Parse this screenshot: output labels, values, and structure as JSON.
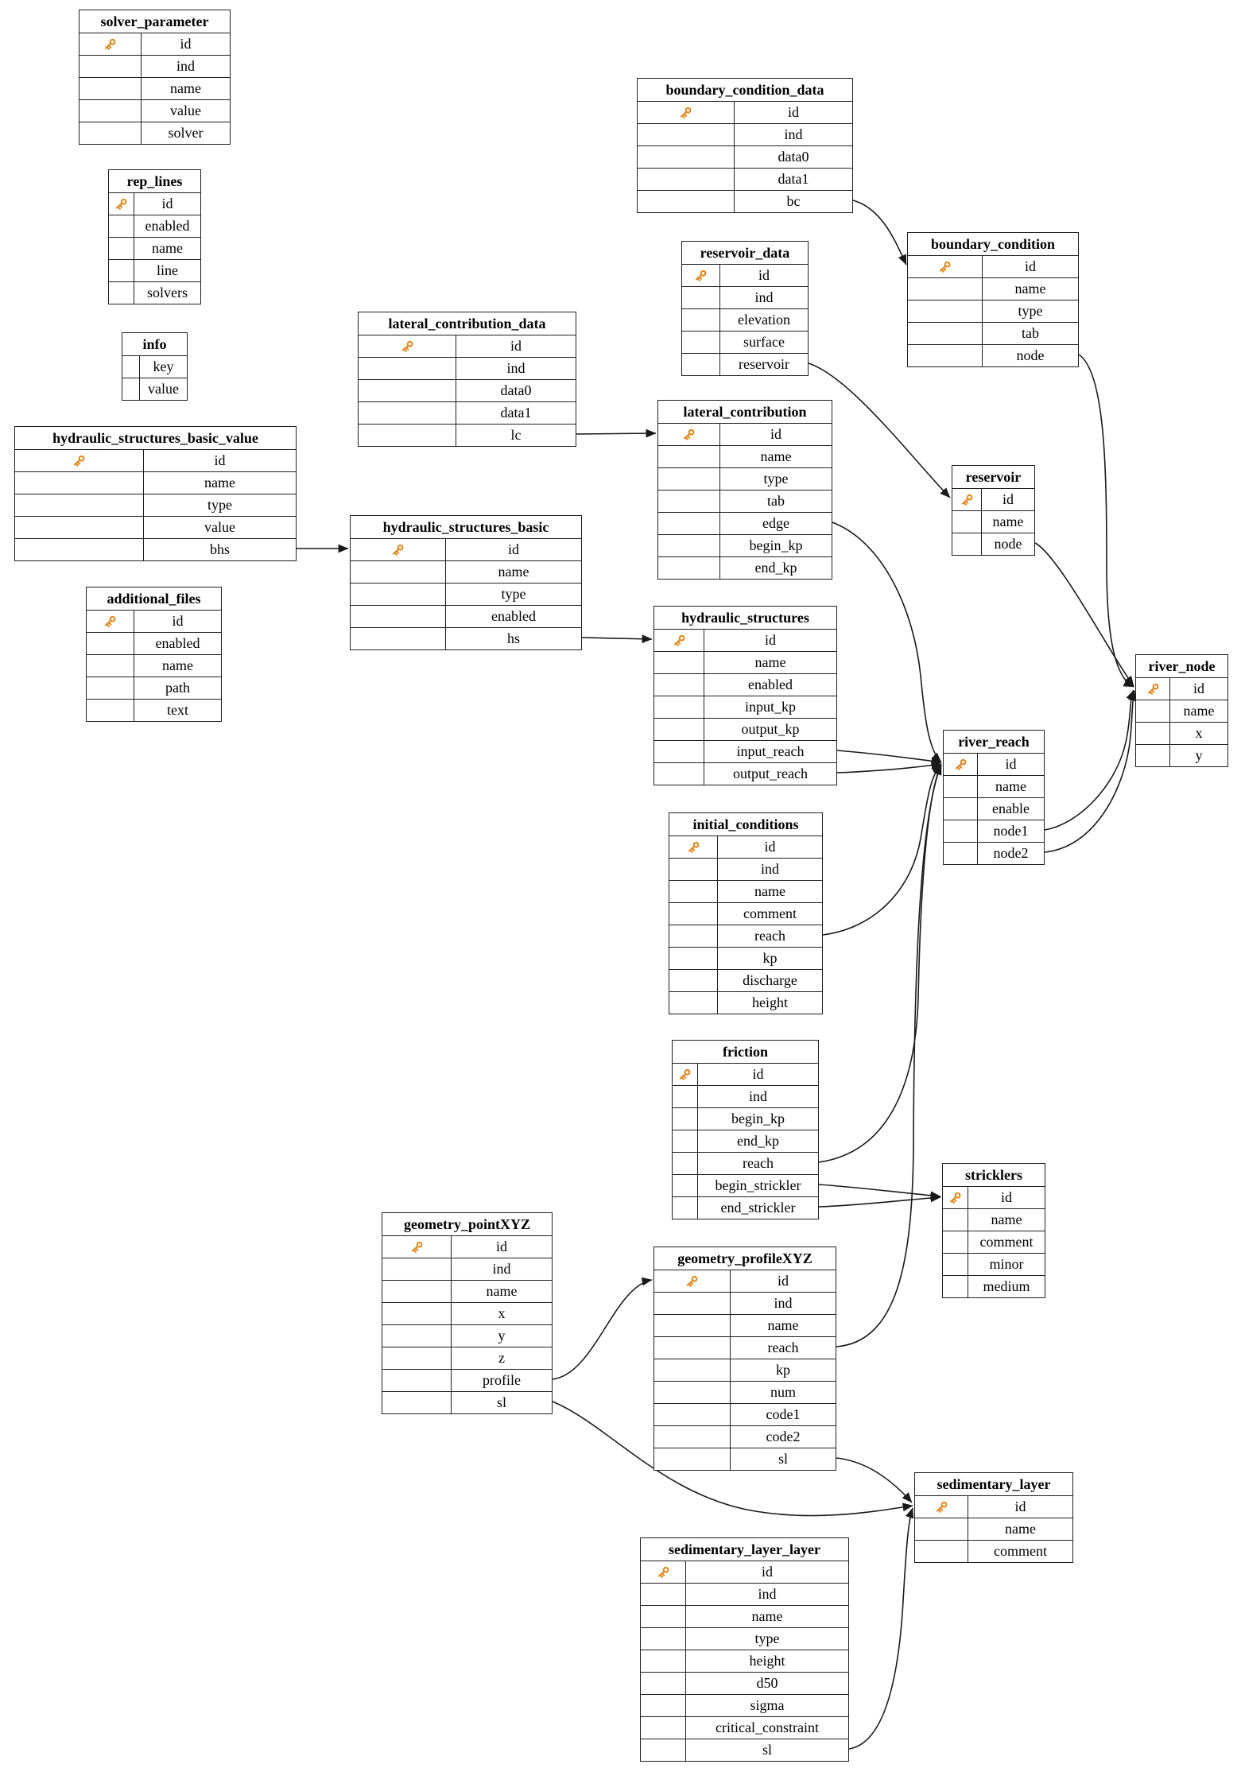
{
  "diagram": {
    "type": "database-schema",
    "tables": [
      {
        "name": "solver_parameter",
        "fields": [
          {
            "name": "id",
            "pk": true
          },
          {
            "name": "ind",
            "pk": false
          },
          {
            "name": "name",
            "pk": false
          },
          {
            "name": "value",
            "pk": false
          },
          {
            "name": "solver",
            "pk": false
          }
        ]
      },
      {
        "name": "rep_lines",
        "fields": [
          {
            "name": "id",
            "pk": true
          },
          {
            "name": "enabled",
            "pk": false
          },
          {
            "name": "name",
            "pk": false
          },
          {
            "name": "line",
            "pk": false
          },
          {
            "name": "solvers",
            "pk": false
          }
        ]
      },
      {
        "name": "info",
        "fields": [
          {
            "name": "key",
            "pk": false
          },
          {
            "name": "value",
            "pk": false
          }
        ]
      },
      {
        "name": "hydraulic_structures_basic_value",
        "fields": [
          {
            "name": "id",
            "pk": true
          },
          {
            "name": "name",
            "pk": false
          },
          {
            "name": "type",
            "pk": false
          },
          {
            "name": "value",
            "pk": false
          },
          {
            "name": "bhs",
            "pk": false
          }
        ]
      },
      {
        "name": "additional_files",
        "fields": [
          {
            "name": "id",
            "pk": true
          },
          {
            "name": "enabled",
            "pk": false
          },
          {
            "name": "name",
            "pk": false
          },
          {
            "name": "path",
            "pk": false
          },
          {
            "name": "text",
            "pk": false
          }
        ]
      },
      {
        "name": "boundary_condition_data",
        "fields": [
          {
            "name": "id",
            "pk": true
          },
          {
            "name": "ind",
            "pk": false
          },
          {
            "name": "data0",
            "pk": false
          },
          {
            "name": "data1",
            "pk": false
          },
          {
            "name": "bc",
            "pk": false
          }
        ]
      },
      {
        "name": "reservoir_data",
        "fields": [
          {
            "name": "id",
            "pk": true
          },
          {
            "name": "ind",
            "pk": false
          },
          {
            "name": "elevation",
            "pk": false
          },
          {
            "name": "surface",
            "pk": false
          },
          {
            "name": "reservoir",
            "pk": false
          }
        ]
      },
      {
        "name": "boundary_condition",
        "fields": [
          {
            "name": "id",
            "pk": true
          },
          {
            "name": "name",
            "pk": false
          },
          {
            "name": "type",
            "pk": false
          },
          {
            "name": "tab",
            "pk": false
          },
          {
            "name": "node",
            "pk": false
          }
        ]
      },
      {
        "name": "reservoir",
        "fields": [
          {
            "name": "id",
            "pk": true
          },
          {
            "name": "name",
            "pk": false
          },
          {
            "name": "node",
            "pk": false
          }
        ]
      },
      {
        "name": "lateral_contribution_data",
        "fields": [
          {
            "name": "id",
            "pk": true
          },
          {
            "name": "ind",
            "pk": false
          },
          {
            "name": "data0",
            "pk": false
          },
          {
            "name": "data1",
            "pk": false
          },
          {
            "name": "lc",
            "pk": false
          }
        ]
      },
      {
        "name": "lateral_contribution",
        "fields": [
          {
            "name": "id",
            "pk": true
          },
          {
            "name": "name",
            "pk": false
          },
          {
            "name": "type",
            "pk": false
          },
          {
            "name": "tab",
            "pk": false
          },
          {
            "name": "edge",
            "pk": false
          },
          {
            "name": "begin_kp",
            "pk": false
          },
          {
            "name": "end_kp",
            "pk": false
          }
        ]
      },
      {
        "name": "hydraulic_structures_basic",
        "fields": [
          {
            "name": "id",
            "pk": true
          },
          {
            "name": "name",
            "pk": false
          },
          {
            "name": "type",
            "pk": false
          },
          {
            "name": "enabled",
            "pk": false
          },
          {
            "name": "hs",
            "pk": false
          }
        ]
      },
      {
        "name": "hydraulic_structures",
        "fields": [
          {
            "name": "id",
            "pk": true
          },
          {
            "name": "name",
            "pk": false
          },
          {
            "name": "enabled",
            "pk": false
          },
          {
            "name": "input_kp",
            "pk": false
          },
          {
            "name": "output_kp",
            "pk": false
          },
          {
            "name": "input_reach",
            "pk": false
          },
          {
            "name": "output_reach",
            "pk": false
          }
        ]
      },
      {
        "name": "river_reach",
        "fields": [
          {
            "name": "id",
            "pk": true
          },
          {
            "name": "name",
            "pk": false
          },
          {
            "name": "enable",
            "pk": false
          },
          {
            "name": "node1",
            "pk": false
          },
          {
            "name": "node2",
            "pk": false
          }
        ]
      },
      {
        "name": "river_node",
        "fields": [
          {
            "name": "id",
            "pk": true
          },
          {
            "name": "name",
            "pk": false
          },
          {
            "name": "x",
            "pk": false
          },
          {
            "name": "y",
            "pk": false
          }
        ]
      },
      {
        "name": "initial_conditions",
        "fields": [
          {
            "name": "id",
            "pk": true
          },
          {
            "name": "ind",
            "pk": false
          },
          {
            "name": "name",
            "pk": false
          },
          {
            "name": "comment",
            "pk": false
          },
          {
            "name": "reach",
            "pk": false
          },
          {
            "name": "kp",
            "pk": false
          },
          {
            "name": "discharge",
            "pk": false
          },
          {
            "name": "height",
            "pk": false
          }
        ]
      },
      {
        "name": "friction",
        "fields": [
          {
            "name": "id",
            "pk": true
          },
          {
            "name": "ind",
            "pk": false
          },
          {
            "name": "begin_kp",
            "pk": false
          },
          {
            "name": "end_kp",
            "pk": false
          },
          {
            "name": "reach",
            "pk": false
          },
          {
            "name": "begin_strickler",
            "pk": false
          },
          {
            "name": "end_strickler",
            "pk": false
          }
        ]
      },
      {
        "name": "stricklers",
        "fields": [
          {
            "name": "id",
            "pk": true
          },
          {
            "name": "name",
            "pk": false
          },
          {
            "name": "comment",
            "pk": false
          },
          {
            "name": "minor",
            "pk": false
          },
          {
            "name": "medium",
            "pk": false
          }
        ]
      },
      {
        "name": "geometry_pointXYZ",
        "fields": [
          {
            "name": "id",
            "pk": true
          },
          {
            "name": "ind",
            "pk": false
          },
          {
            "name": "name",
            "pk": false
          },
          {
            "name": "x",
            "pk": false
          },
          {
            "name": "y",
            "pk": false
          },
          {
            "name": "z",
            "pk": false
          },
          {
            "name": "profile",
            "pk": false
          },
          {
            "name": "sl",
            "pk": false
          }
        ]
      },
      {
        "name": "geometry_profileXYZ",
        "fields": [
          {
            "name": "id",
            "pk": true
          },
          {
            "name": "ind",
            "pk": false
          },
          {
            "name": "name",
            "pk": false
          },
          {
            "name": "reach",
            "pk": false
          },
          {
            "name": "kp",
            "pk": false
          },
          {
            "name": "num",
            "pk": false
          },
          {
            "name": "code1",
            "pk": false
          },
          {
            "name": "code2",
            "pk": false
          },
          {
            "name": "sl",
            "pk": false
          }
        ]
      },
      {
        "name": "sedimentary_layer",
        "fields": [
          {
            "name": "id",
            "pk": true
          },
          {
            "name": "name",
            "pk": false
          },
          {
            "name": "comment",
            "pk": false
          }
        ]
      },
      {
        "name": "sedimentary_layer_layer",
        "fields": [
          {
            "name": "id",
            "pk": true
          },
          {
            "name": "ind",
            "pk": false
          },
          {
            "name": "name",
            "pk": false
          },
          {
            "name": "type",
            "pk": false
          },
          {
            "name": "height",
            "pk": false
          },
          {
            "name": "d50",
            "pk": false
          },
          {
            "name": "sigma",
            "pk": false
          },
          {
            "name": "critical_constraint",
            "pk": false
          },
          {
            "name": "sl",
            "pk": false
          }
        ]
      }
    ],
    "relationships": [
      {
        "from": "hydraulic_structures_basic_value.bhs",
        "to": "hydraulic_structures_basic.id"
      },
      {
        "from": "boundary_condition_data.bc",
        "to": "boundary_condition.id"
      },
      {
        "from": "reservoir_data.reservoir",
        "to": "reservoir.id"
      },
      {
        "from": "lateral_contribution_data.lc",
        "to": "lateral_contribution.id"
      },
      {
        "from": "hydraulic_structures_basic.hs",
        "to": "hydraulic_structures.id"
      },
      {
        "from": "lateral_contribution.edge",
        "to": "river_reach.id"
      },
      {
        "from": "hydraulic_structures.input_reach",
        "to": "river_reach.id"
      },
      {
        "from": "hydraulic_structures.output_reach",
        "to": "river_reach.id"
      },
      {
        "from": "initial_conditions.reach",
        "to": "river_reach.id"
      },
      {
        "from": "friction.reach",
        "to": "river_reach.id"
      },
      {
        "from": "friction.begin_strickler",
        "to": "stricklers.id"
      },
      {
        "from": "friction.end_strickler",
        "to": "stricklers.id"
      },
      {
        "from": "geometry_profileXYZ.reach",
        "to": "river_reach.id"
      },
      {
        "from": "boundary_condition.node",
        "to": "river_node.id"
      },
      {
        "from": "reservoir.node",
        "to": "river_node.id"
      },
      {
        "from": "river_reach.node1",
        "to": "river_node.id"
      },
      {
        "from": "river_reach.node2",
        "to": "river_node.id"
      },
      {
        "from": "geometry_pointXYZ.profile",
        "to": "geometry_profileXYZ.id"
      },
      {
        "from": "geometry_pointXYZ.sl",
        "to": "sedimentary_layer.id"
      },
      {
        "from": "geometry_profileXYZ.sl",
        "to": "sedimentary_layer.id"
      },
      {
        "from": "sedimentary_layer_layer.sl",
        "to": "sedimentary_layer.id"
      }
    ],
    "colors": {
      "key_icon": "#E0861A",
      "edge": "#1a1a1a",
      "table_border": "#1f1f1f",
      "background": "#ffffff",
      "text": "#000000"
    },
    "icons": {
      "primary_key": "key-icon"
    }
  }
}
